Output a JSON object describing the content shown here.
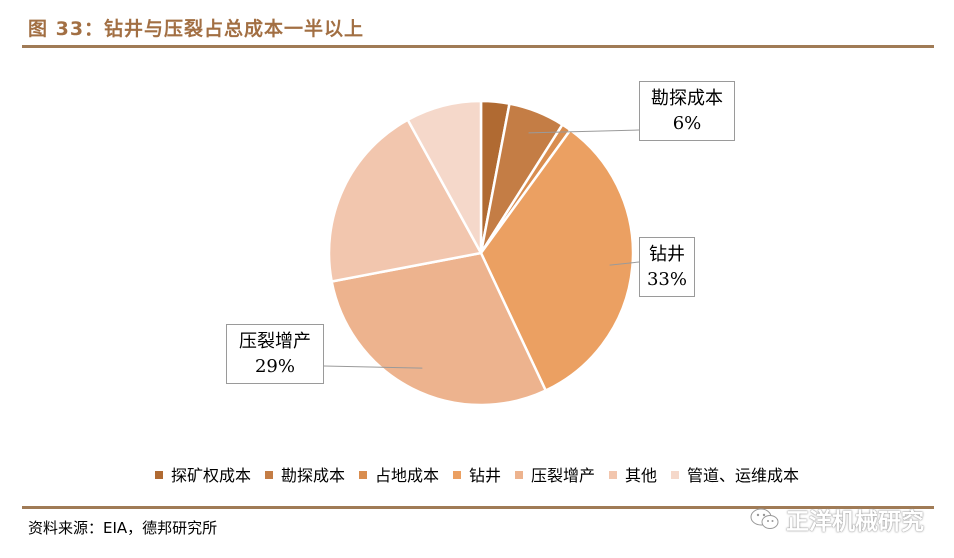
{
  "figure_title": "图 33：钻井与压裂占总成本一半以上",
  "source": "资料来源：EIA，德邦研究所",
  "watermark": "正洋机械研究",
  "chart_data": {
    "type": "pie",
    "title": "",
    "slices": [
      {
        "name": "探矿权成本",
        "value": 3,
        "color": "#b06a32"
      },
      {
        "name": "勘探成本",
        "value": 6,
        "label": "6%",
        "color": "#c47d45"
      },
      {
        "name": "占地成本",
        "value": 1,
        "color": "#d98d4f"
      },
      {
        "name": "钻井",
        "value": 33,
        "label": "33%",
        "color": "#eba062"
      },
      {
        "name": "压裂增产",
        "value": 29,
        "label": "29%",
        "color": "#edb38e"
      },
      {
        "name": "其他",
        "value": 20,
        "color": "#f2c6ae"
      },
      {
        "name": "管道、运维成本",
        "value": 8,
        "color": "#f5d8ca"
      }
    ],
    "legend_position": "bottom",
    "callouts": [
      {
        "slice": "勘探成本",
        "name": "勘探成本",
        "pct": "6%"
      },
      {
        "slice": "钻井",
        "name": "钻井",
        "pct": "33%"
      },
      {
        "slice": "压裂增产",
        "name": "压裂增产",
        "pct": "29%"
      }
    ]
  }
}
